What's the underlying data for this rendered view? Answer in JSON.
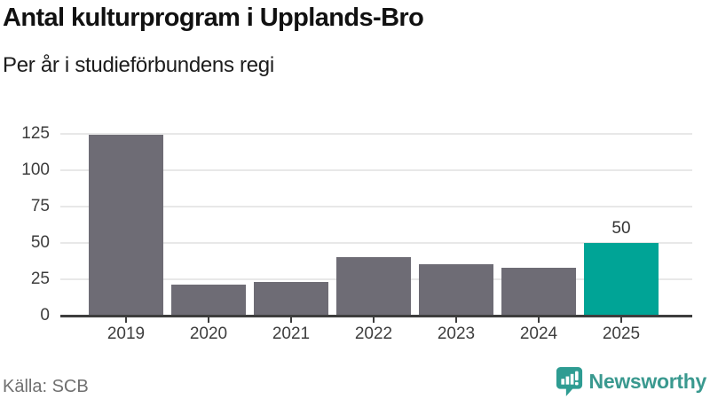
{
  "header": {
    "title": "Antal kulturprogram i Upplands-Bro",
    "subtitle": "Per år i studieförbundens regi"
  },
  "footer": {
    "source": "Källa: SCB",
    "brand": "Newsworthy"
  },
  "colors": {
    "bar": "#6e6c75",
    "accent": "#00a496",
    "brand_teal": "#3a998f",
    "grid": "#e8e8e8",
    "axis": "#3d3d3d",
    "label_text": "#333333",
    "source_text": "#707070"
  },
  "chart_data": {
    "type": "bar",
    "title": "Antal kulturprogram i Upplands-Bro",
    "subtitle": "Per år i studieförbundens regi",
    "categories": [
      "2019",
      "2020",
      "2021",
      "2022",
      "2023",
      "2024",
      "2025"
    ],
    "values": [
      124,
      21,
      23,
      40,
      35,
      33,
      50
    ],
    "data_labels": [
      "",
      "",
      "",
      "",
      "",
      "",
      "50"
    ],
    "highlight_index": 6,
    "ylim": [
      0,
      125
    ],
    "yticks": [
      0,
      25,
      50,
      75,
      100,
      125
    ],
    "grid": true,
    "legend": false,
    "xlabel": "",
    "ylabel": "",
    "source": "Källa: SCB"
  }
}
